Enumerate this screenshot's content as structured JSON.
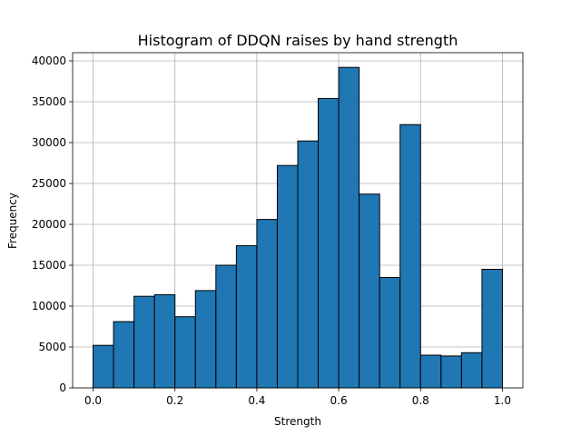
{
  "chart_data": {
    "type": "bar",
    "title": "Histogram of DDQN raises by hand strength",
    "xlabel": "Strength",
    "ylabel": "Frequency",
    "xlim": [
      -0.05,
      1.05
    ],
    "ylim": [
      0,
      41000
    ],
    "x_ticks": [
      "0.0",
      "0.2",
      "0.4",
      "0.6",
      "0.8",
      "1.0"
    ],
    "y_ticks": [
      "0",
      "5000",
      "10000",
      "15000",
      "20000",
      "25000",
      "30000",
      "35000",
      "40000"
    ],
    "grid": true,
    "bin_edges": [
      0.0,
      0.05,
      0.1,
      0.15,
      0.2,
      0.25,
      0.3,
      0.35,
      0.4,
      0.45,
      0.5,
      0.55,
      0.6,
      0.65,
      0.7,
      0.75,
      0.8,
      0.85,
      0.9,
      0.95,
      1.0
    ],
    "values": [
      5200,
      8100,
      11200,
      11400,
      8700,
      11900,
      15000,
      17400,
      20600,
      27200,
      30200,
      35400,
      39200,
      23700,
      13500,
      32200,
      4000,
      3900,
      4300,
      14500
    ],
    "colors": {
      "bar_fill": "#1f77b4",
      "bar_edge": "#000000",
      "grid": "#b0b0b0"
    }
  }
}
